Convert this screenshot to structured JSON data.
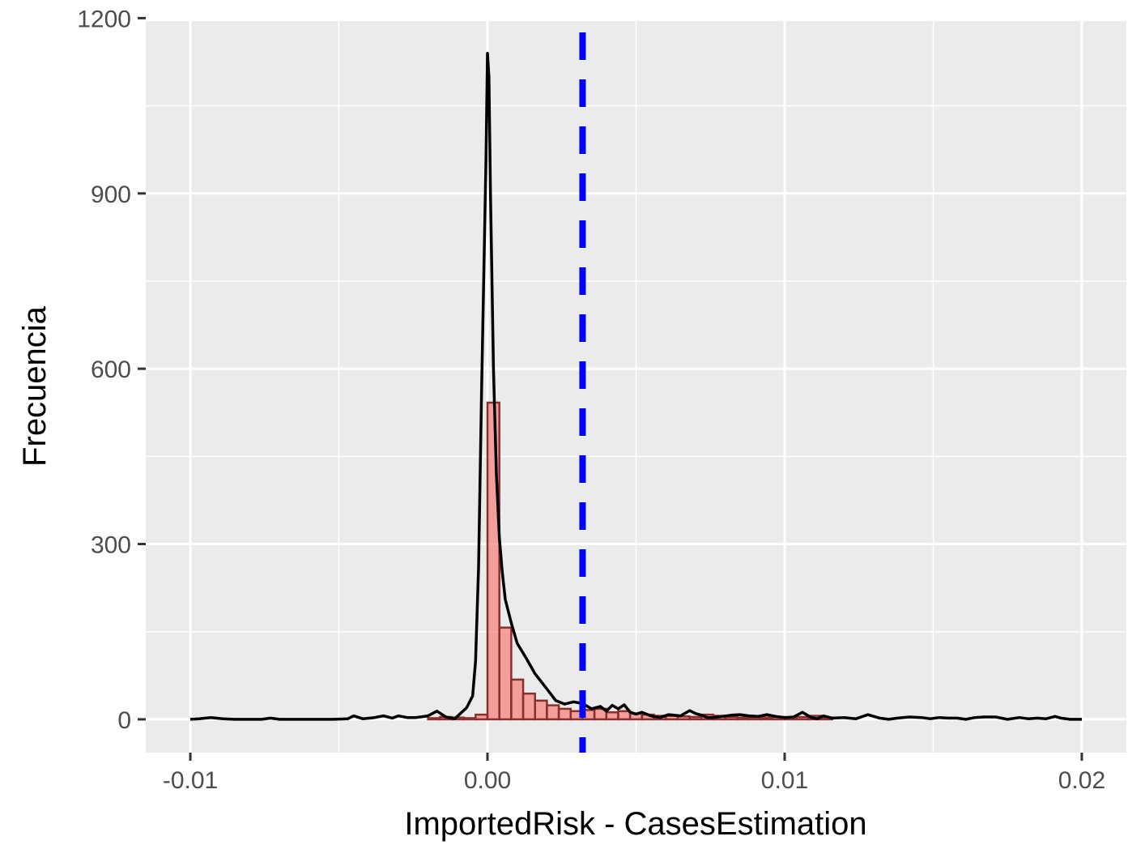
{
  "chart_data": {
    "type": "histogram",
    "xlabel": "ImportedRisk - CasesEstimation",
    "ylabel": "Frecuencia",
    "xlim": [
      -0.0115,
      0.0215
    ],
    "ylim": [
      -57,
      1195
    ],
    "x_ticks": [
      -0.01,
      0.0,
      0.01,
      0.02
    ],
    "x_tick_labels": [
      "-0.01",
      "0.00",
      "0.01",
      "0.02"
    ],
    "y_ticks": [
      0,
      300,
      600,
      900,
      1200
    ],
    "y_tick_labels": [
      "0",
      "300",
      "600",
      "900",
      "1200"
    ],
    "grid": true,
    "legend": "none",
    "colors": {
      "panel_background": "#ebebeb",
      "grid": "#ffffff",
      "bar_fill": "#f8766d",
      "bar_fill_opacity": 0.65,
      "bar_outline": "#8b2e2e",
      "density_line": "#000000",
      "reference_line": "#0000ff",
      "tick_label": "#4d4d4d"
    },
    "histogram": {
      "bin_width": 0.0004,
      "bins": [
        {
          "x0": -0.002,
          "x1": -0.0016,
          "count": 2
        },
        {
          "x0": -0.0016,
          "x1": -0.0012,
          "count": 4
        },
        {
          "x0": -0.0012,
          "x1": -0.0008,
          "count": 3
        },
        {
          "x0": -0.0008,
          "x1": -0.0004,
          "count": 2
        },
        {
          "x0": -0.0004,
          "x1": 0.0,
          "count": 8
        },
        {
          "x0": 0.0,
          "x1": 0.0004,
          "count": 542
        },
        {
          "x0": 0.0004,
          "x1": 0.0008,
          "count": 157
        },
        {
          "x0": 0.0008,
          "x1": 0.0012,
          "count": 68
        },
        {
          "x0": 0.0012,
          "x1": 0.0016,
          "count": 44
        },
        {
          "x0": 0.0016,
          "x1": 0.002,
          "count": 32
        },
        {
          "x0": 0.002,
          "x1": 0.0024,
          "count": 24
        },
        {
          "x0": 0.0024,
          "x1": 0.0028,
          "count": 18
        },
        {
          "x0": 0.0028,
          "x1": 0.0032,
          "count": 14
        },
        {
          "x0": 0.0032,
          "x1": 0.0036,
          "count": 16
        },
        {
          "x0": 0.0036,
          "x1": 0.004,
          "count": 18
        },
        {
          "x0": 0.004,
          "x1": 0.0044,
          "count": 12
        },
        {
          "x0": 0.0044,
          "x1": 0.0048,
          "count": 14
        },
        {
          "x0": 0.0048,
          "x1": 0.0052,
          "count": 10
        },
        {
          "x0": 0.0052,
          "x1": 0.0056,
          "count": 8
        },
        {
          "x0": 0.0056,
          "x1": 0.006,
          "count": 6
        },
        {
          "x0": 0.006,
          "x1": 0.0064,
          "count": 6
        },
        {
          "x0": 0.0064,
          "x1": 0.0068,
          "count": 5
        },
        {
          "x0": 0.0068,
          "x1": 0.0072,
          "count": 4
        },
        {
          "x0": 0.0072,
          "x1": 0.0076,
          "count": 8
        },
        {
          "x0": 0.0076,
          "x1": 0.008,
          "count": 6
        },
        {
          "x0": 0.008,
          "x1": 0.0084,
          "count": 4
        },
        {
          "x0": 0.0084,
          "x1": 0.0088,
          "count": 3
        },
        {
          "x0": 0.0088,
          "x1": 0.0092,
          "count": 2
        },
        {
          "x0": 0.0092,
          "x1": 0.0096,
          "count": 3
        },
        {
          "x0": 0.0096,
          "x1": 0.01,
          "count": 4
        },
        {
          "x0": 0.01,
          "x1": 0.0104,
          "count": 3
        },
        {
          "x0": 0.0104,
          "x1": 0.0108,
          "count": 4
        },
        {
          "x0": 0.0108,
          "x1": 0.0112,
          "count": 6
        },
        {
          "x0": 0.0112,
          "x1": 0.0116,
          "count": 3
        }
      ]
    },
    "density_line": {
      "x": [
        -0.01,
        -0.0097,
        -0.0093,
        -0.0089,
        -0.0085,
        -0.008,
        -0.0076,
        -0.0073,
        -0.007,
        -0.006,
        -0.0052,
        -0.0047,
        -0.0045,
        -0.0042,
        -0.0038,
        -0.0035,
        -0.0032,
        -0.003,
        -0.0027,
        -0.0024,
        -0.002,
        -0.0017,
        -0.0014,
        -0.0011,
        -0.0007,
        -0.0005,
        -0.0004,
        -0.0003,
        -0.0002,
        -5e-05,
        0.0,
        5e-05,
        0.0001,
        0.0002,
        0.0003,
        0.0004,
        0.0005,
        0.0006,
        0.0008,
        0.001,
        0.0013,
        0.0016,
        0.002,
        0.0023,
        0.0026,
        0.0029,
        0.0032,
        0.0035,
        0.0038,
        0.004,
        0.0042,
        0.0044,
        0.0046,
        0.0048,
        0.005,
        0.0052,
        0.0055,
        0.0058,
        0.0061,
        0.0065,
        0.0068,
        0.007,
        0.0072,
        0.0074,
        0.0076,
        0.0079,
        0.0082,
        0.0085,
        0.0088,
        0.0091,
        0.0094,
        0.0097,
        0.01,
        0.0103,
        0.0106,
        0.0109,
        0.0111,
        0.0113,
        0.0116,
        0.012,
        0.0124,
        0.0128,
        0.0132,
        0.0135,
        0.0138,
        0.0142,
        0.0146,
        0.0149,
        0.0152,
        0.0155,
        0.0158,
        0.0161,
        0.0164,
        0.0167,
        0.0171,
        0.0175,
        0.0179,
        0.0182,
        0.0185,
        0.0188,
        0.0191,
        0.0193,
        0.0196,
        0.02
      ],
      "y": [
        0,
        1,
        3,
        1,
        0,
        0,
        0,
        2,
        0,
        0,
        0,
        1,
        6,
        1,
        3,
        6,
        2,
        6,
        3,
        3,
        6,
        14,
        4,
        1,
        20,
        40,
        100,
        260,
        560,
        960,
        1140,
        1100,
        900,
        600,
        420,
        310,
        250,
        205,
        165,
        130,
        105,
        78,
        52,
        32,
        26,
        30,
        27,
        18,
        22,
        14,
        24,
        18,
        25,
        12,
        9,
        12,
        6,
        3,
        8,
        6,
        15,
        10,
        7,
        3,
        3,
        5,
        7,
        8,
        6,
        5,
        8,
        5,
        3,
        4,
        12,
        3,
        1,
        6,
        2,
        3,
        1,
        8,
        2,
        0,
        2,
        4,
        3,
        1,
        3,
        2,
        2,
        0,
        3,
        4,
        4,
        0,
        3,
        1,
        2,
        1,
        5,
        2,
        0,
        0
      ]
    },
    "reference_line": {
      "x": 0.0032,
      "style": "dashed"
    }
  }
}
